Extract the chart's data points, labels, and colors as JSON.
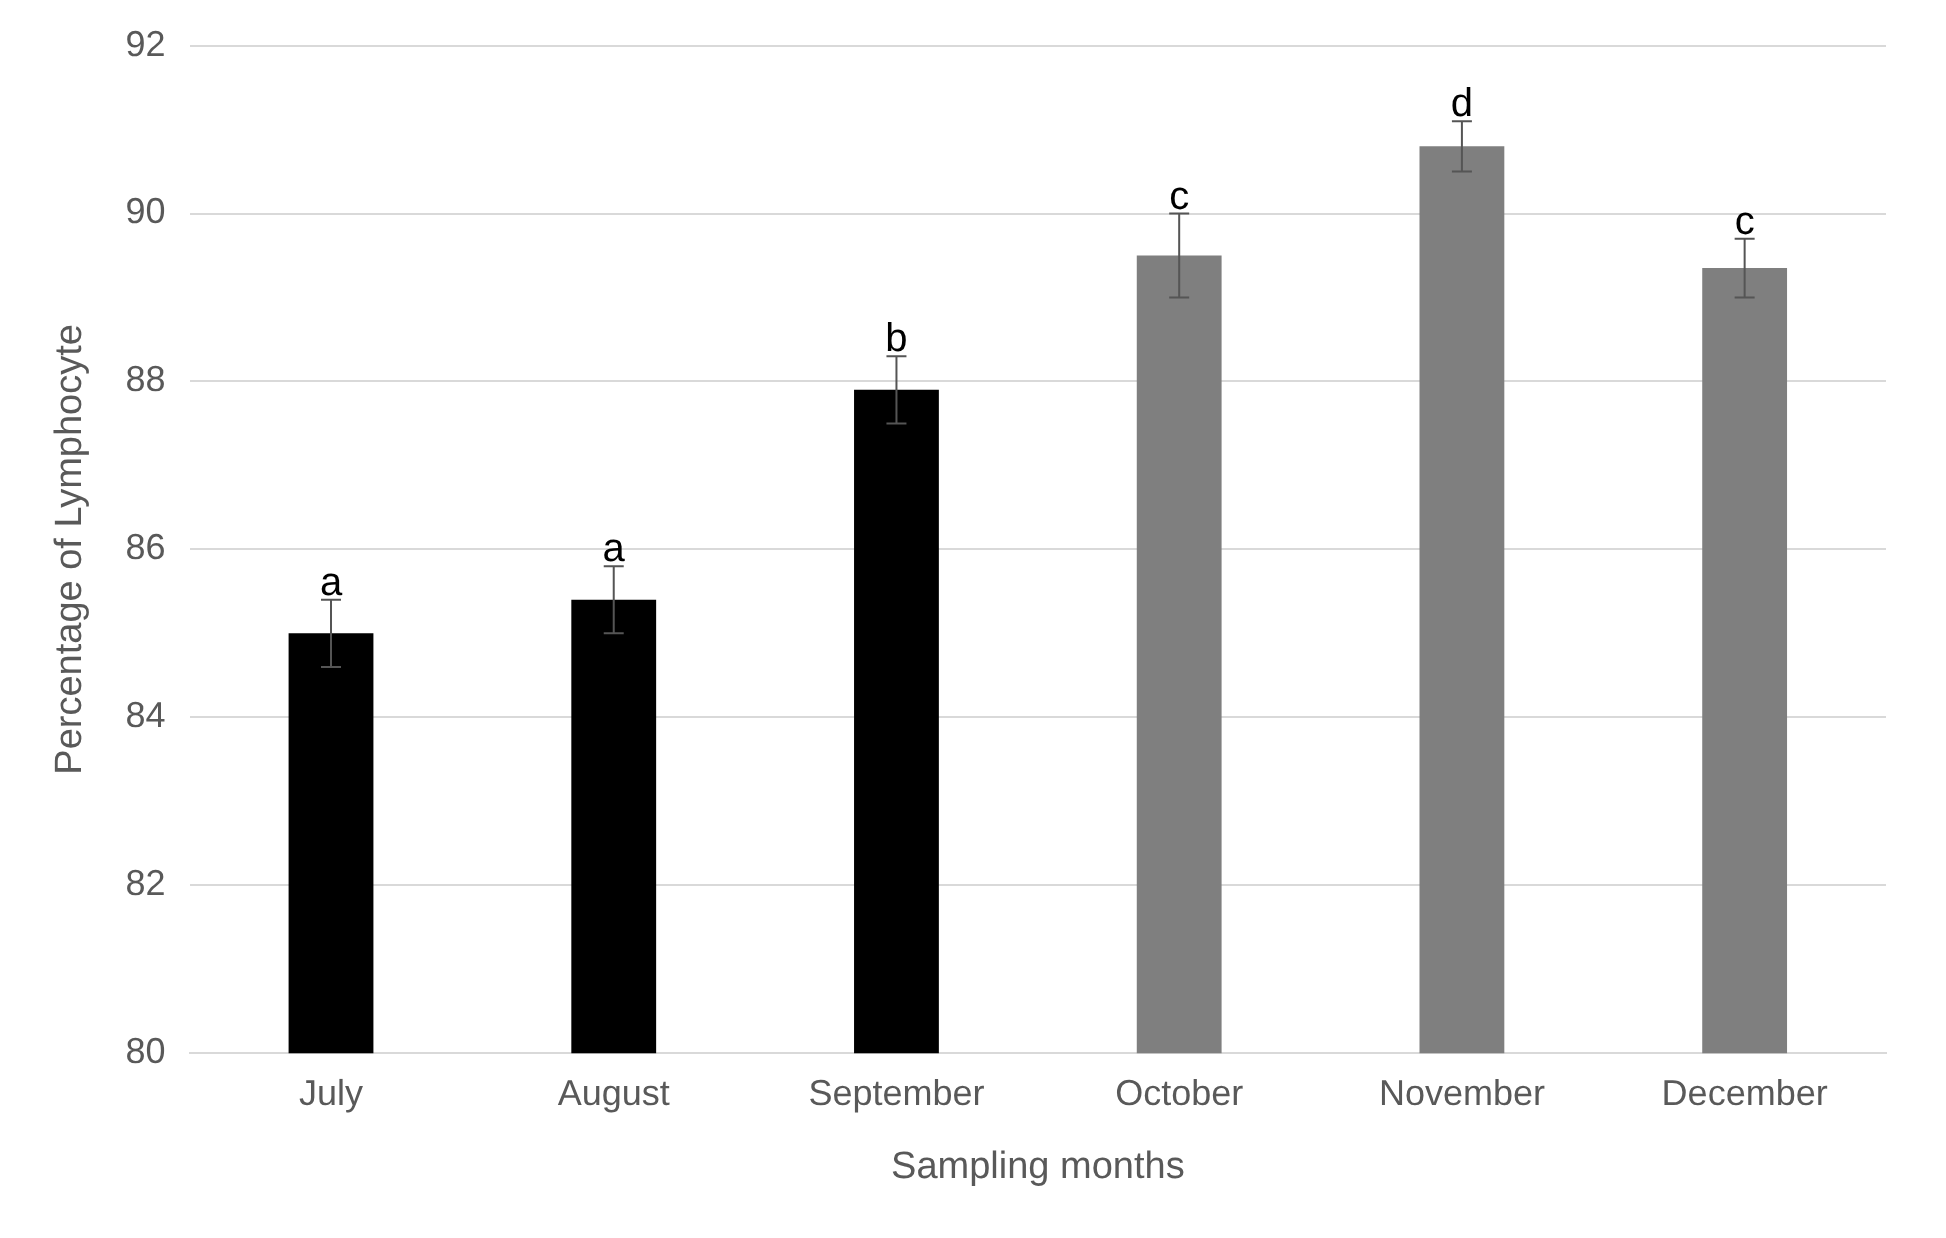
{
  "chart_data": {
    "type": "bar",
    "xlabel": "Sampling months",
    "ylabel": "Percentage of Lymphocyte",
    "categories": [
      "July",
      "August",
      "September",
      "October",
      "November",
      "December"
    ],
    "values": [
      85.0,
      85.4,
      87.9,
      89.5,
      90.8,
      89.35
    ],
    "colors": [
      "#000000",
      "#000000",
      "#000000",
      "#7f7f7f",
      "#7f7f7f",
      "#7f7f7f"
    ],
    "errors": [
      0.4,
      0.4,
      0.4,
      0.5,
      0.3,
      0.35
    ],
    "ylim": [
      80,
      92
    ],
    "yticks": [
      80,
      82,
      84,
      86,
      88,
      90,
      92
    ],
    "grid": "y",
    "legend": false,
    "annotations": [
      {
        "text": "a",
        "x": "July",
        "y": 85.4
      },
      {
        "text": "a",
        "x": "August",
        "y": 85.8
      },
      {
        "text": "b",
        "x": "September",
        "y": 88.3
      },
      {
        "text": "c",
        "x": "October",
        "y": 90.0
      },
      {
        "text": "d",
        "x": "November",
        "y": 91.1
      },
      {
        "text": "c",
        "x": "December",
        "y": 89.7
      }
    ]
  }
}
